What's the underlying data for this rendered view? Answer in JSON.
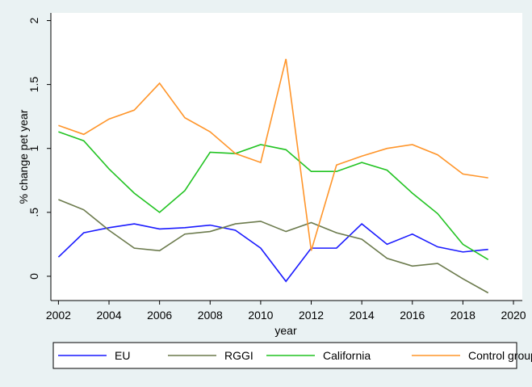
{
  "chart_data": {
    "type": "line",
    "x": [
      2002,
      2003,
      2004,
      2005,
      2006,
      2007,
      2008,
      2009,
      2010,
      2011,
      2012,
      2013,
      2014,
      2015,
      2016,
      2017,
      2018,
      2019
    ],
    "series": [
      {
        "name": "EU",
        "color": "#1a1aff",
        "values": [
          0.15,
          0.34,
          0.38,
          0.41,
          0.37,
          0.38,
          0.4,
          0.36,
          0.22,
          -0.04,
          0.22,
          0.22,
          0.41,
          0.25,
          0.33,
          0.23,
          0.19,
          0.21
        ]
      },
      {
        "name": "RGGI",
        "color": "#6b7a4c",
        "values": [
          0.6,
          0.52,
          0.36,
          0.22,
          0.2,
          0.33,
          0.35,
          0.41,
          0.43,
          0.35,
          0.42,
          0.34,
          0.29,
          0.14,
          0.08,
          0.1,
          -0.02,
          -0.13
        ]
      },
      {
        "name": "California",
        "color": "#22c322",
        "values": [
          1.13,
          1.06,
          0.84,
          0.65,
          0.5,
          0.67,
          0.97,
          0.96,
          1.03,
          0.99,
          0.82,
          0.82,
          0.89,
          0.83,
          0.65,
          0.49,
          0.25,
          0.13
        ]
      },
      {
        "name": "Control group",
        "color": "#ff952a",
        "values": [
          1.18,
          1.11,
          1.23,
          1.3,
          1.51,
          1.24,
          1.13,
          0.96,
          0.89,
          1.7,
          0.2,
          0.87,
          0.94,
          1.0,
          1.03,
          0.95,
          0.8,
          0.77
        ]
      }
    ],
    "xlabel": "year",
    "ylabel": "% change pet year",
    "xlim": [
      2001.7,
      2020.35
    ],
    "ylim": [
      -0.19,
      2.06
    ],
    "xticks": [
      2002,
      2004,
      2006,
      2008,
      2010,
      2012,
      2014,
      2016,
      2018,
      2020
    ],
    "yticks": [
      0,
      {
        "value": 0.5,
        "label": ".5"
      },
      1,
      1.5,
      2
    ]
  }
}
